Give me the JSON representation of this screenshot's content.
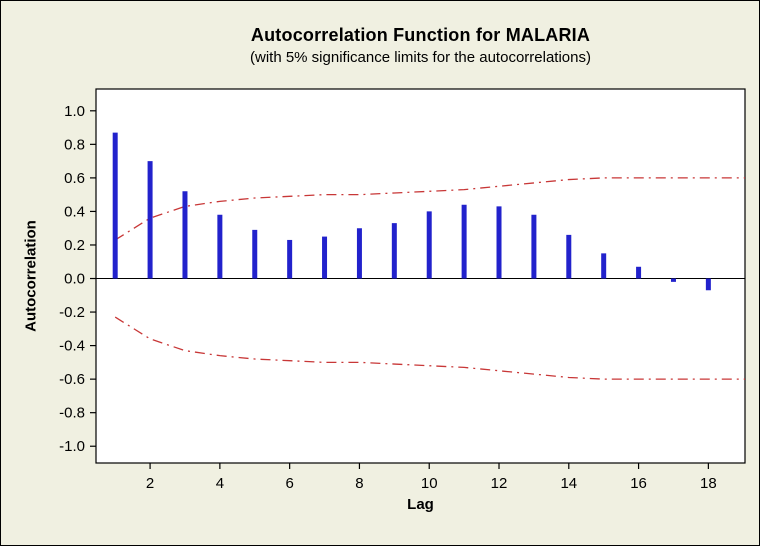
{
  "chart_data": {
    "type": "bar",
    "title": "Autocorrelation Function for MALARIA",
    "subtitle": "(with 5% significance limits for the autocorrelations)",
    "xlabel": "Lag",
    "ylabel": "Autocorrelation",
    "lags": [
      1,
      2,
      3,
      4,
      5,
      6,
      7,
      8,
      9,
      10,
      11,
      12,
      13,
      14,
      15,
      16,
      17,
      18
    ],
    "acf": [
      0.87,
      0.7,
      0.52,
      0.38,
      0.29,
      0.23,
      0.25,
      0.3,
      0.33,
      0.4,
      0.44,
      0.43,
      0.38,
      0.26,
      0.15,
      0.07,
      -0.02,
      -0.07
    ],
    "upper_limit": [
      0.23,
      0.36,
      0.43,
      0.46,
      0.48,
      0.49,
      0.5,
      0.5,
      0.51,
      0.52,
      0.53,
      0.55,
      0.57,
      0.59,
      0.6,
      0.6,
      0.6,
      0.6
    ],
    "lower_limit": [
      -0.23,
      -0.36,
      -0.43,
      -0.46,
      -0.48,
      -0.49,
      -0.5,
      -0.5,
      -0.51,
      -0.52,
      -0.53,
      -0.55,
      -0.57,
      -0.59,
      -0.6,
      -0.6,
      -0.6,
      -0.6
    ],
    "yticks": [
      1.0,
      0.8,
      0.6,
      0.4,
      0.2,
      0.0,
      -0.2,
      -0.4,
      -0.6,
      -0.8,
      -1.0
    ],
    "xticks": [
      2,
      4,
      6,
      8,
      10,
      12,
      14,
      16,
      18
    ],
    "ylim": [
      -1.0,
      1.0
    ],
    "grid": false,
    "legend": false,
    "bar_color": "#2222CC",
    "limit_color": "#C83737",
    "axis_color": "#000000",
    "plot_bg_color": "#FFFFFF",
    "outer_bg_color": "#F0F0E1"
  }
}
